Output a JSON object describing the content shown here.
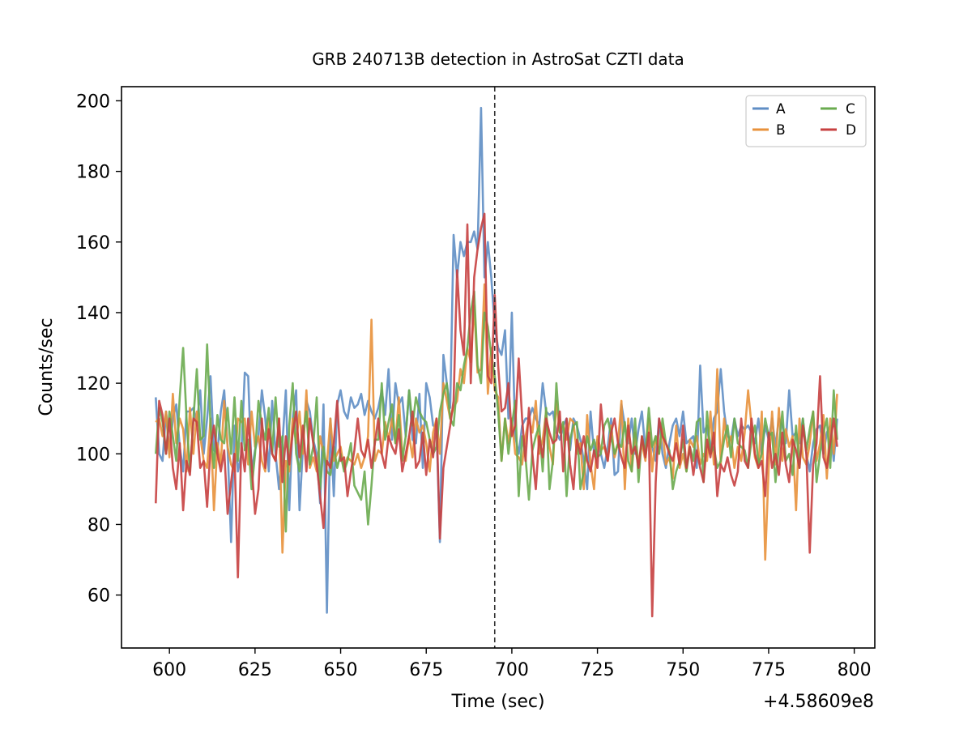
{
  "chart_data": {
    "type": "line",
    "title": "GRB 240713B detection in AstroSat CZTI data",
    "xlabel": "Time (sec)",
    "ylabel": "Counts/sec",
    "offset_text": "+4.58609e8",
    "xlim": [
      586,
      806
    ],
    "ylim": [
      45,
      204
    ],
    "x_ticks": [
      600,
      625,
      650,
      675,
      700,
      725,
      750,
      775,
      800
    ],
    "y_ticks": [
      60,
      80,
      100,
      120,
      140,
      160,
      180,
      200
    ],
    "x_tick_labels": [
      "600",
      "625",
      "650",
      "675",
      "700",
      "725",
      "750",
      "775",
      "800"
    ],
    "y_tick_labels": [
      "60",
      "80",
      "100",
      "120",
      "140",
      "160",
      "180",
      "200"
    ],
    "vertical_line": {
      "x": 695,
      "style": "dashed",
      "color": "#333333"
    },
    "grid": false,
    "legend": {
      "placement": "top-right",
      "columns": 2
    },
    "x": [
      596,
      597,
      598,
      599,
      600,
      601,
      602,
      603,
      604,
      605,
      606,
      607,
      608,
      609,
      610,
      611,
      612,
      613,
      614,
      615,
      616,
      617,
      618,
      619,
      620,
      621,
      622,
      623,
      624,
      625,
      626,
      627,
      628,
      629,
      630,
      631,
      632,
      633,
      634,
      635,
      636,
      637,
      638,
      639,
      640,
      641,
      642,
      643,
      644,
      645,
      646,
      647,
      648,
      649,
      650,
      651,
      652,
      653,
      654,
      655,
      656,
      657,
      658,
      659,
      660,
      661,
      662,
      663,
      664,
      665,
      666,
      667,
      668,
      669,
      670,
      671,
      672,
      673,
      674,
      675,
      676,
      677,
      678,
      679,
      680,
      681,
      682,
      683,
      684,
      685,
      686,
      687,
      688,
      689,
      690,
      691,
      692,
      693,
      694,
      695,
      696,
      697,
      698,
      699,
      700,
      701,
      702,
      703,
      704,
      705,
      706,
      707,
      708,
      709,
      710,
      711,
      712,
      713,
      714,
      715,
      716,
      717,
      718,
      719,
      720,
      721,
      722,
      723,
      724,
      725,
      726,
      727,
      728,
      729,
      730,
      731,
      732,
      733,
      734,
      735,
      736,
      737,
      738,
      739,
      740,
      741,
      742,
      743,
      744,
      745,
      746,
      747,
      748,
      749,
      750,
      751,
      752,
      753,
      754,
      755,
      756,
      757,
      758,
      759,
      760,
      761,
      762,
      763,
      764,
      765,
      766,
      767,
      768,
      769,
      770,
      771,
      772,
      773,
      774,
      775,
      776,
      777,
      778,
      779,
      780,
      781,
      782,
      783,
      784,
      785,
      786,
      787,
      788,
      789,
      790,
      791,
      792,
      793,
      794,
      795
    ],
    "series": [
      {
        "name": "A",
        "color": "#5f8ec4",
        "values": [
          116,
          100,
          98,
          112,
          100,
          110,
          114,
          102,
          95,
          112,
          112,
          113,
          108,
          118,
          100,
          110,
          122,
          101,
          100,
          112,
          118,
          102,
          75,
          108,
          95,
          100,
          123,
          122,
          95,
          101,
          105,
          118,
          110,
          95,
          115,
          100,
          90,
          103,
          118,
          84,
          110,
          118,
          84,
          102,
          115,
          112,
          104,
          100,
          86,
          114,
          55,
          110,
          88,
          114,
          118,
          112,
          110,
          116,
          113,
          114,
          117,
          111,
          115,
          112,
          110,
          113,
          118,
          111,
          124,
          104,
          120,
          114,
          116,
          105,
          118,
          104,
          103,
          117,
          96,
          120,
          116,
          108,
          108,
          75,
          128,
          120,
          113,
          162,
          150,
          160,
          156,
          160,
          160,
          163,
          158,
          198,
          150,
          160,
          150,
          136,
          130,
          128,
          135,
          110,
          140,
          105,
          100,
          108,
          110,
          110,
          113,
          110,
          108,
          120,
          112,
          111,
          112,
          106,
          104,
          108,
          110,
          101,
          110,
          108,
          104,
          98,
          90,
          112,
          100,
          104,
          100,
          96,
          102,
          110,
          94,
          95,
          114,
          108,
          103,
          110,
          100,
          107,
          112,
          101,
          105,
          102,
          98,
          110,
          100,
          96,
          103,
          108,
          110,
          105,
          112,
          103,
          104,
          105,
          96,
          125,
          106,
          108,
          100,
          110,
          112,
          124,
          112,
          105,
          104,
          110,
          105,
          108,
          107,
          108,
          106,
          103,
          110,
          100,
          108,
          104,
          110,
          102,
          110,
          108,
          103,
          118,
          105,
          106,
          103,
          110,
          100,
          95,
          103,
          107,
          108,
          100,
          106,
          108,
          98,
          110
        ]
      },
      {
        "name": "B",
        "color": "#e8913b",
        "values": [
          109,
          110,
          105,
          112,
          99,
          117,
          103,
          110,
          107,
          95,
          113,
          100,
          112,
          105,
          98,
          96,
          110,
          84,
          103,
          97,
          115,
          102,
          97,
          95,
          110,
          109,
          110,
          97,
          112,
          102,
          105,
          98,
          95,
          110,
          100,
          98,
          110,
          72,
          98,
          95,
          110,
          103,
          112,
          100,
          118,
          96,
          99,
          95,
          105,
          100,
          97,
          110,
          98,
          100,
          102,
          96,
          99,
          98,
          97,
          100,
          96,
          99,
          105,
          138,
          98,
          101,
          100,
          109,
          104,
          110,
          103,
          116,
          100,
          98,
          105,
          99,
          110,
          106,
          108,
          103,
          95,
          106,
          110,
          100,
          120,
          115,
          110,
          113,
          115,
          124,
          120,
          130,
          126,
          142,
          123,
          124,
          148,
          117,
          130,
          118,
          116,
          98,
          110,
          103,
          110,
          100,
          99,
          97,
          105,
          110,
          106,
          115,
          100,
          104,
          112,
          102,
          97,
          115,
          106,
          108,
          104,
          110,
          109,
          100,
          103,
          90,
          111,
          97,
          90,
          105,
          101,
          102,
          98,
          108,
          99,
          103,
          115,
          90,
          110,
          95,
          106,
          97,
          103,
          98,
          110,
          95,
          105,
          100,
          107,
          97,
          99,
          93,
          108,
          96,
          100,
          95,
          104,
          102,
          105,
          97,
          100,
          98,
          112,
          97,
          124,
          97,
          110,
          102,
          105,
          96,
          102,
          98,
          106,
          118,
          108,
          99,
          96,
          112,
          70,
          96,
          112,
          97,
          113,
          98,
          107,
          102,
          105,
          84,
          110,
          99,
          97,
          103,
          112,
          98,
          103,
          111,
          93,
          110,
          100,
          117
        ]
      },
      {
        "name": "C",
        "color": "#6aab4f",
        "values": [
          100,
          113,
          109,
          100,
          112,
          105,
          98,
          116,
          130,
          110,
          95,
          110,
          124,
          104,
          105,
          131,
          108,
          96,
          111,
          104,
          103,
          113,
          100,
          116,
          98,
          115,
          101,
          104,
          90,
          100,
          115,
          108,
          104,
          113,
          100,
          116,
          102,
          105,
          78,
          108,
          120,
          100,
          95,
          105,
          112,
          97,
          102,
          116,
          90,
          102,
          95,
          94,
          102,
          96,
          100,
          95,
          98,
          103,
          91,
          89,
          87,
          95,
          80,
          91,
          104,
          104,
          120,
          104,
          109,
          114,
          103,
          111,
          98,
          105,
          118,
          108,
          116,
          112,
          110,
          109,
          104,
          100,
          102,
          112,
          117,
          120,
          110,
          108,
          120,
          118,
          125,
          130,
          140,
          146,
          125,
          120,
          140,
          136,
          128,
          122,
          112,
          98,
          110,
          100,
          108,
          115,
          88,
          105,
          99,
          87,
          101,
          105,
          108,
          95,
          113,
          90,
          98,
          120,
          106,
          109,
          88,
          104,
          108,
          109,
          90,
          95,
          105,
          101,
          104,
          99,
          100,
          108,
          110,
          105,
          100,
          103,
          102,
          109,
          98,
          95,
          110,
          92,
          105,
          100,
          113,
          102,
          105,
          100,
          110,
          103,
          101,
          90,
          95,
          98,
          104,
          95,
          102,
          98,
          109,
          110,
          92,
          112,
          100,
          102,
          96,
          98,
          104,
          108,
          99,
          110,
          103,
          102,
          101,
          96,
          104,
          108,
          97,
          100,
          110,
          105,
          106,
          92,
          102,
          112,
          98,
          100,
          94,
          108,
          96,
          110,
          101,
          107,
          112,
          92,
          100,
          106,
          110,
          96,
          118,
          104
        ]
      },
      {
        "name": "D",
        "color": "#c74040",
        "values": [
          86,
          115,
          111,
          100,
          110,
          96,
          90,
          103,
          84,
          98,
          94,
          110,
          109,
          96,
          98,
          85,
          102,
          108,
          100,
          95,
          101,
          83,
          92,
          100,
          65,
          103,
          95,
          110,
          97,
          83,
          90,
          110,
          96,
          107,
          100,
          98,
          110,
          92,
          105,
          97,
          106,
          112,
          99,
          108,
          95,
          110,
          103,
          97,
          88,
          79,
          98,
          96,
          103,
          115,
          98,
          99,
          88,
          95,
          101,
          110,
          101,
          99,
          104,
          96,
          103,
          110,
          100,
          96,
          105,
          102,
          100,
          107,
          95,
          100,
          105,
          112,
          96,
          98,
          106,
          94,
          104,
          99,
          110,
          76,
          96,
          102,
          108,
          115,
          152,
          135,
          128,
          165,
          120,
          150,
          158,
          164,
          168,
          122,
          120,
          145,
          125,
          112,
          113,
          120,
          105,
          108,
          127,
          110,
          98,
          113,
          100,
          90,
          105,
          99,
          110,
          106,
          103,
          104,
          112,
          95,
          110,
          97,
          90,
          104,
          100,
          105,
          98,
          95,
          101,
          96,
          114,
          103,
          98,
          106,
          110,
          103,
          99,
          96,
          108,
          100,
          102,
          96,
          105,
          99,
          106,
          54,
          92,
          110,
          105,
          103,
          100,
          98,
          103,
          97,
          108,
          96,
          102,
          94,
          101,
          96,
          92,
          104,
          99,
          106,
          88,
          97,
          95,
          99,
          94,
          91,
          95,
          110,
          98,
          96,
          110,
          100,
          96,
          98,
          88,
          106,
          96,
          100,
          94,
          106,
          97,
          92,
          104,
          101,
          96,
          108,
          100,
          72,
          97,
          103,
          122,
          99,
          96,
          103,
          110,
          102
        ]
      }
    ]
  }
}
